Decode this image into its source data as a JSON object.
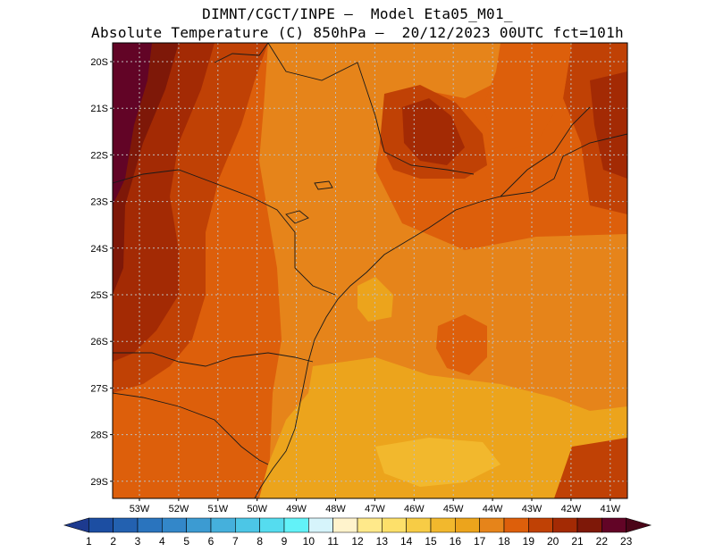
{
  "header": {
    "line1": "DIMNT/CGCT/INPE –  Model Eta05_M01_",
    "line2": "Absolute Temperature (C) 850hPa –  20/12/2023 00UTC fct=101h"
  },
  "map": {
    "lat_labels": [
      "20S",
      "21S",
      "22S",
      "23S",
      "24S",
      "25S",
      "26S",
      "27S",
      "28S",
      "29S"
    ],
    "lon_labels": [
      "53W",
      "52W",
      "51W",
      "50W",
      "49W",
      "48W",
      "47W",
      "46W",
      "45W",
      "44W",
      "43W",
      "42W",
      "41W"
    ]
  },
  "colorbar": {
    "labels": [
      "1",
      "2",
      "3",
      "4",
      "5",
      "6",
      "7",
      "8",
      "9",
      "10",
      "11",
      "12",
      "13",
      "14",
      "15",
      "16",
      "17",
      "18",
      "19",
      "20",
      "21",
      "22",
      "23"
    ],
    "colors": [
      "#1d3a8f",
      "#1c4ea2",
      "#2361b0",
      "#2a74be",
      "#3387c9",
      "#3c9bd2",
      "#45b0dc",
      "#4cc6e6",
      "#55dcef",
      "#62f2f8",
      "#d6f4fb",
      "#fff3cc",
      "#ffe98a",
      "#fde06a",
      "#f7cc45",
      "#f2b82d",
      "#eca41c",
      "#e6841a",
      "#dd5f0b",
      "#c04105",
      "#a32a04",
      "#7e1808",
      "#620426",
      "#4a0518"
    ]
  }
}
